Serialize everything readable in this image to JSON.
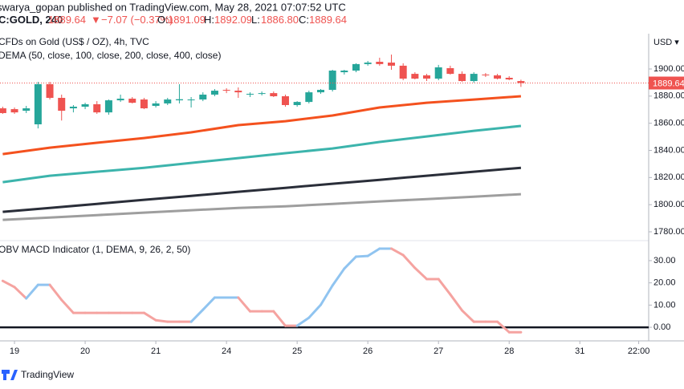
{
  "header": {
    "publisher": "swarya_gopan published on TradingView.com, May 28, 2021 07:07:52 UTC",
    "symbol": "C:GOLD, 240",
    "last": "1889.64",
    "arrow": "▼",
    "change": "−7.07 (−0.37%)",
    "o_label": "O:",
    "o": "1891.09",
    "h_label": "H:",
    "h": "1892.09",
    "l_label": "L:",
    "l": "1886.80",
    "c_label": "C:",
    "c": "1889.64"
  },
  "footer": {
    "brand": "TradingView"
  },
  "chart_data": [
    {
      "type": "candlestick",
      "title": "CFDs on Gold (US$ / OZ), 4h, TVC",
      "overlay_label": "DEMA (50, close, 100, close, 200, close, 400, close)",
      "currency": "USD ▾",
      "up_color": "#26a69a",
      "down_color": "#ef5350",
      "x": [
        -1,
        0,
        1,
        2,
        3,
        4,
        5,
        6,
        7,
        8,
        9,
        10,
        11,
        12,
        13,
        14,
        15,
        16,
        17,
        18,
        19,
        20,
        21,
        22,
        23,
        24,
        25,
        26,
        27,
        28,
        29,
        30,
        31,
        32,
        33,
        34,
        35,
        36,
        37,
        38,
        39,
        40,
        41,
        42,
        43
      ],
      "open": [
        1871.0,
        1870.4,
        1869.2,
        1859.2,
        1888.8,
        1878.7,
        1871.0,
        1872.2,
        1874.0,
        1868.0,
        1876.9,
        1878.1,
        1877.5,
        1872.8,
        1874.6,
        1876.9,
        1877.1,
        1877.5,
        1881.1,
        1884.6,
        1884.0,
        1881.1,
        1881.7,
        1882.2,
        1879.9,
        1873.4,
        1875.7,
        1882.8,
        1884.6,
        1897.6,
        1898.8,
        1903.6,
        1905.3,
        1904.7,
        1902.4,
        1896.4,
        1895.3,
        1892.9,
        1900.6,
        1896.4,
        1891.1,
        1895.9,
        1895.3,
        1893.5,
        1891.09
      ],
      "high": [
        1872.2,
        1871.6,
        1872.8,
        1890.5,
        1890.5,
        1881.1,
        1873.4,
        1875.1,
        1876.3,
        1877.5,
        1881.1,
        1879.3,
        1878.7,
        1876.3,
        1878.7,
        1888.8,
        1879.3,
        1882.8,
        1885.2,
        1885.8,
        1886.4,
        1882.8,
        1883.4,
        1883.4,
        1881.1,
        1876.3,
        1884.0,
        1885.2,
        1899.4,
        1899.4,
        1904.2,
        1905.9,
        1908.3,
        1910.6,
        1904.2,
        1897.6,
        1896.4,
        1903.0,
        1902.4,
        1898.2,
        1897.6,
        1897.0,
        1896.4,
        1894.7,
        1892.09
      ],
      "low": [
        1866.9,
        1866.9,
        1867.5,
        1856.2,
        1877.5,
        1862.0,
        1868.0,
        1870.4,
        1866.9,
        1866.3,
        1875.7,
        1874.6,
        1870.4,
        1871.6,
        1873.4,
        1874.6,
        1871.6,
        1876.3,
        1879.9,
        1882.2,
        1878.7,
        1879.3,
        1880.5,
        1879.3,
        1872.2,
        1872.2,
        1874.6,
        1881.7,
        1883.4,
        1895.9,
        1897.6,
        1902.4,
        1902.4,
        1899.4,
        1891.7,
        1892.3,
        1891.1,
        1891.7,
        1895.9,
        1890.5,
        1889.9,
        1894.1,
        1892.3,
        1891.7,
        1886.8
      ],
      "close": [
        1867.5,
        1868.0,
        1871.0,
        1888.8,
        1878.7,
        1869.2,
        1872.2,
        1874.0,
        1868.0,
        1876.9,
        1878.1,
        1875.1,
        1871.0,
        1874.6,
        1877.5,
        1877.7,
        1877.5,
        1881.1,
        1884.0,
        1884.0,
        1882.8,
        1881.7,
        1882.2,
        1879.9,
        1873.4,
        1875.7,
        1882.8,
        1884.6,
        1898.8,
        1898.8,
        1903.6,
        1904.7,
        1903.6,
        1902.4,
        1892.9,
        1892.9,
        1892.9,
        1901.2,
        1896.4,
        1891.1,
        1896.4,
        1895.3,
        1892.9,
        1892.3,
        1889.64
      ],
      "series": [
        {
          "color": "#f4511e",
          "x": [
            -1,
            3,
            7,
            11,
            15,
            19,
            23,
            27,
            31,
            35,
            39,
            43
          ],
          "values": [
            1837.3,
            1842.0,
            1845.6,
            1849.1,
            1853.3,
            1858.6,
            1861.5,
            1865.7,
            1871.6,
            1875.1,
            1877.5,
            1879.9
          ]
        },
        {
          "color": "#3cb4ac",
          "x": [
            -1,
            3,
            7,
            11,
            15,
            19,
            23,
            27,
            31,
            35,
            39,
            43
          ],
          "values": [
            1816.6,
            1821.3,
            1824.3,
            1827.2,
            1830.8,
            1834.3,
            1837.9,
            1841.4,
            1846.2,
            1850.3,
            1854.4,
            1858.0
          ]
        },
        {
          "color": "#2a2e39",
          "x": [
            -1,
            3,
            7,
            11,
            15,
            19,
            23,
            27,
            31,
            35,
            39,
            43
          ],
          "values": [
            1794.7,
            1797.6,
            1800.6,
            1803.6,
            1806.5,
            1809.5,
            1812.4,
            1815.4,
            1818.3,
            1821.3,
            1824.3,
            1827.2
          ]
        },
        {
          "color": "#9e9e9e",
          "x": [
            -1,
            3,
            7,
            11,
            15,
            19,
            23,
            27,
            31,
            35,
            39,
            43
          ],
          "values": [
            1788.8,
            1790.5,
            1792.3,
            1794.1,
            1795.9,
            1797.6,
            1798.8,
            1800.6,
            1802.4,
            1804.1,
            1805.9,
            1807.7
          ]
        }
      ],
      "xlim": [
        -1.23,
        53.3
      ],
      "ylim": [
        1773.5,
        1926
      ],
      "yticks": [
        {
          "value": 1780,
          "label": "1780.00"
        },
        {
          "value": 1800,
          "label": "1800.00"
        },
        {
          "value": 1820,
          "label": "1820.00"
        },
        {
          "value": 1840,
          "label": "1840.00"
        },
        {
          "value": 1860,
          "label": "1860.00"
        },
        {
          "value": 1880,
          "label": "1880.00"
        },
        {
          "value": 1900,
          "label": "1900.00"
        }
      ]
    },
    {
      "type": "line",
      "title": "OBV MACD Indicator (1, DEMA, 9, 26, 2, 50)",
      "up_color": "#90c4f0",
      "down_color": "#f5a3a0",
      "zero_line": 0,
      "zero_color": "#131722",
      "x": [
        -1,
        0,
        1,
        2,
        3,
        4,
        5,
        6,
        7,
        8,
        9,
        10,
        11,
        12,
        13,
        14,
        15,
        16,
        17,
        18,
        19,
        20,
        21,
        22,
        23,
        24,
        25,
        26,
        27,
        28,
        29,
        30,
        31,
        32,
        33,
        34,
        35,
        36,
        37,
        38,
        39,
        40,
        41,
        42,
        43
      ],
      "values": [
        20.9,
        18.1,
        13.0,
        19.1,
        19.1,
        12.3,
        6.5,
        6.5,
        6.5,
        6.5,
        6.5,
        6.5,
        6.5,
        3.2,
        2.5,
        2.5,
        2.5,
        7.9,
        13.4,
        13.4,
        13.4,
        7.2,
        7.2,
        7.2,
        0.7,
        0.7,
        4.3,
        10.1,
        18.8,
        26.4,
        31.8,
        32.1,
        35.4,
        35.4,
        32.5,
        26.7,
        21.7,
        21.7,
        14.8,
        7.6,
        2.5,
        2.5,
        2.5,
        -2.2,
        -2.2
      ],
      "xlim": [
        -1.23,
        53.3
      ],
      "ylim": [
        -6.1,
        39
      ],
      "yticks": [
        {
          "value": 0,
          "label": "0.00"
        },
        {
          "value": 10,
          "label": "10.00"
        },
        {
          "value": 20,
          "label": "20.00"
        },
        {
          "value": 30,
          "label": "30.00"
        }
      ],
      "xticks": [
        {
          "value": 0,
          "label": "19"
        },
        {
          "value": 6,
          "label": "20"
        },
        {
          "value": 12,
          "label": "21"
        },
        {
          "value": 18,
          "label": "24"
        },
        {
          "value": 24,
          "label": "25"
        },
        {
          "value": 30,
          "label": "26"
        },
        {
          "value": 36,
          "label": "27"
        },
        {
          "value": 42,
          "label": "28"
        },
        {
          "value": 48,
          "label": "31"
        },
        {
          "value": 53,
          "label": "22:00"
        }
      ]
    }
  ]
}
